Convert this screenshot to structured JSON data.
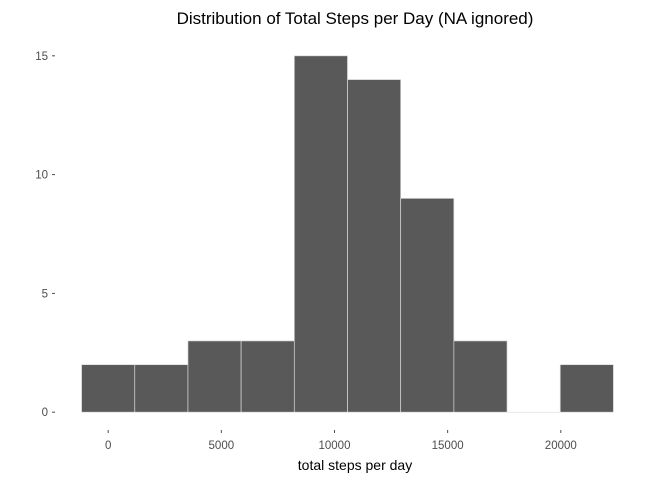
{
  "chart_data": {
    "type": "bar",
    "title": "Distribution of Total Steps per Day (NA ignored)",
    "xlabel": "total steps per day",
    "ylabel": "",
    "binwidth": 2350,
    "bins": [
      {
        "x_start": -1175,
        "x_end": 1175,
        "count": 2
      },
      {
        "x_start": 1175,
        "x_end": 3525,
        "count": 2
      },
      {
        "x_start": 3525,
        "x_end": 5875,
        "count": 3
      },
      {
        "x_start": 5875,
        "x_end": 8225,
        "count": 3
      },
      {
        "x_start": 8225,
        "x_end": 10575,
        "count": 15
      },
      {
        "x_start": 10575,
        "x_end": 12925,
        "count": 14
      },
      {
        "x_start": 12925,
        "x_end": 15275,
        "count": 9
      },
      {
        "x_start": 15275,
        "x_end": 17625,
        "count": 3
      },
      {
        "x_start": 17625,
        "x_end": 19975,
        "count": 0
      },
      {
        "x_start": 19975,
        "x_end": 22325,
        "count": 2
      }
    ],
    "x_ticks": [
      0,
      5000,
      10000,
      15000,
      20000
    ],
    "x_tick_labels": [
      "0",
      "5000",
      "10000",
      "15000",
      "20000"
    ],
    "y_ticks": [
      0,
      5,
      10,
      15
    ],
    "y_tick_labels": [
      "0",
      "5",
      "10",
      "15"
    ],
    "xlim": [
      -2350,
      23500
    ],
    "ylim": [
      -0.75,
      15.75
    ],
    "grid": false,
    "legend": "none",
    "bar_color": "#595959",
    "bar_outline_color": "#d9d9d9"
  }
}
